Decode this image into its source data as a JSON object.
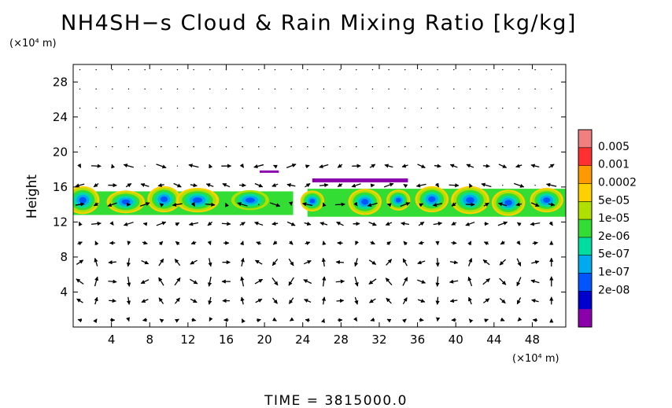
{
  "chart_data": {
    "type": "heatmap",
    "title": "NH4SH−s Cloud & Rain Mixing Ratio [kg/kg]",
    "ylabel": "Height",
    "x_unit": "(×10⁴ m)",
    "y_unit": "(×10⁴ m)",
    "xlim": [
      0,
      51.5
    ],
    "ylim": [
      0,
      30
    ],
    "x_ticks": [
      "4",
      "8",
      "12",
      "16",
      "20",
      "24",
      "28",
      "32",
      "36",
      "40",
      "44",
      "48"
    ],
    "y_ticks": [
      "4",
      "8",
      "12",
      "16",
      "20",
      "24",
      "28"
    ],
    "colorbar": {
      "labels": [
        "0.005",
        "0.001",
        "0.0002",
        "5e-05",
        "1e-05",
        "2e-06",
        "5e-07",
        "1e-07",
        "2e-08"
      ],
      "colors": [
        "#f08080",
        "#ff3030",
        "#ff9900",
        "#ffd000",
        "#b0e000",
        "#33dd33",
        "#00dda0",
        "#00aaee",
        "#0055ff",
        "#0000cc",
        "#8a00aa"
      ]
    },
    "cloud_layer": {
      "base_height": 12.5,
      "top_height": 16.5,
      "thin_layer_heights": [
        17.8,
        16.8
      ],
      "cells": [
        {
          "x": 1,
          "y": 14.5,
          "w": 3.5,
          "h": 3.2,
          "level": 6
        },
        {
          "x": 5.5,
          "y": 14.3,
          "w": 4,
          "h": 2.6,
          "level": 5
        },
        {
          "x": 9.5,
          "y": 14.6,
          "w": 3.5,
          "h": 3,
          "level": 6
        },
        {
          "x": 13,
          "y": 14.5,
          "w": 4.5,
          "h": 2.8,
          "level": 6
        },
        {
          "x": 18.5,
          "y": 14.5,
          "w": 4.5,
          "h": 2.6,
          "level": 4
        },
        {
          "x": 25,
          "y": 14.4,
          "w": 2.5,
          "h": 2.4,
          "level": 5
        },
        {
          "x": 30.5,
          "y": 14.3,
          "w": 3.5,
          "h": 3,
          "level": 6
        },
        {
          "x": 34,
          "y": 14.5,
          "w": 2.5,
          "h": 2.4,
          "level": 5
        },
        {
          "x": 37.5,
          "y": 14.6,
          "w": 3.5,
          "h": 3,
          "level": 6
        },
        {
          "x": 41.5,
          "y": 14.5,
          "w": 4,
          "h": 3.2,
          "level": 6
        },
        {
          "x": 45.5,
          "y": 14.2,
          "w": 3.5,
          "h": 3,
          "level": 7
        },
        {
          "x": 49.5,
          "y": 14.5,
          "w": 3.5,
          "h": 2.8,
          "level": 5
        }
      ]
    },
    "wind_vectors": "shown as arrow field",
    "grid": false,
    "legend": "colorbar right"
  },
  "footer": {
    "time_label": "TIME  =  3815000.0"
  }
}
